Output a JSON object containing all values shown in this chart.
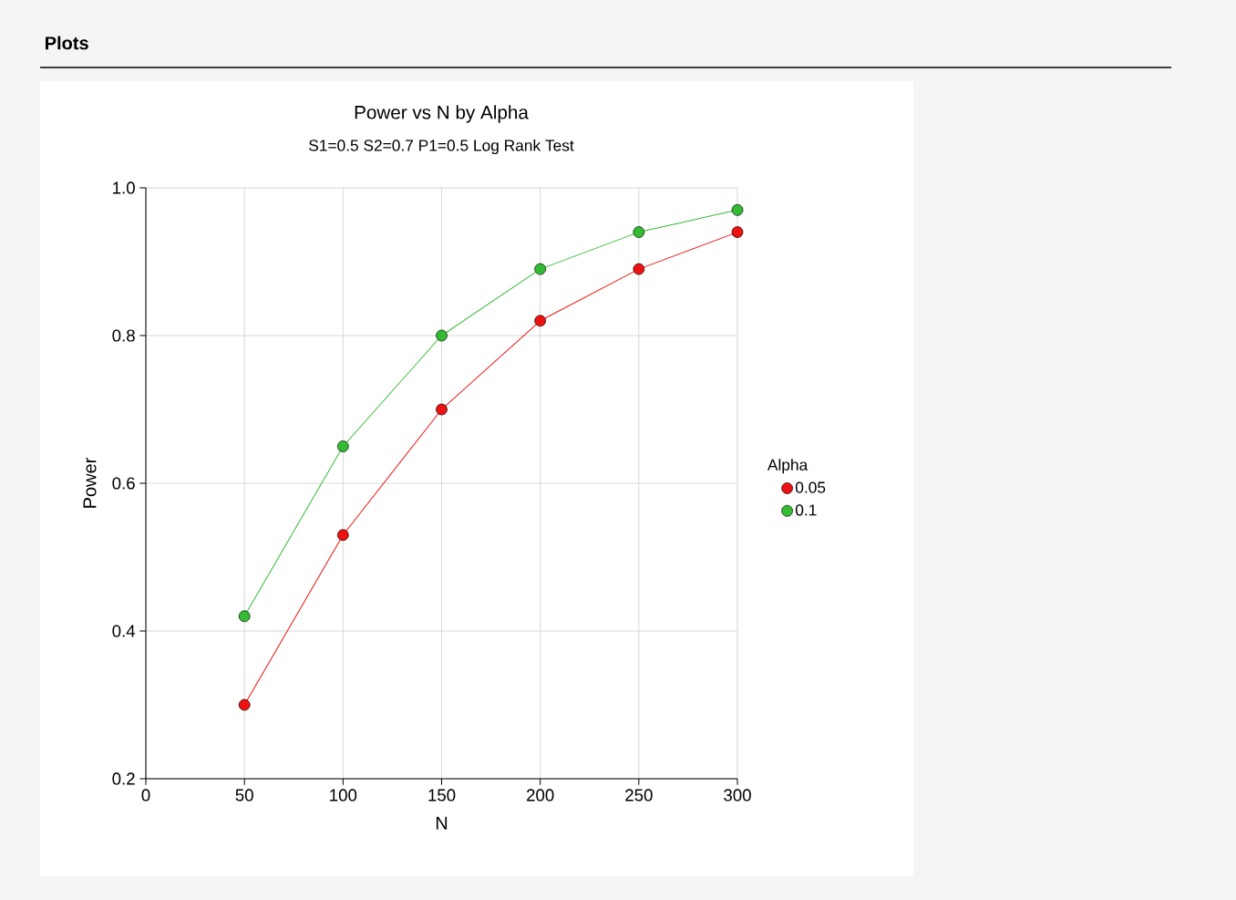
{
  "chart_data": {
    "type": "line",
    "title": "Power vs N by Alpha",
    "subtitle": "S1=0.5 S2=0.7 P1=0.5 Log Rank Test",
    "xlabel": "N",
    "ylabel": "Power",
    "legend_title": "Alpha",
    "annotations": [
      "Plots"
    ],
    "x": [
      50,
      100,
      150,
      200,
      250,
      300
    ],
    "series": [
      {
        "name": "0.05",
        "color": "#ee1111",
        "values": [
          0.3,
          0.53,
          0.7,
          0.82,
          0.89,
          0.94
        ]
      },
      {
        "name": "0.1",
        "color": "#33bb33",
        "values": [
          0.42,
          0.65,
          0.8,
          0.89,
          0.94,
          0.97
        ]
      }
    ],
    "xlim": [
      0,
      300
    ],
    "ylim": [
      0.2,
      1.0
    ],
    "xticks": [
      0,
      50,
      100,
      150,
      200,
      250,
      300
    ],
    "yticks": [
      0.2,
      0.4,
      0.6,
      0.8,
      {
        "value": 1.0,
        "label": "1.0"
      }
    ],
    "grid": true,
    "legend": "right",
    "marker": "circle",
    "line_style": "solid"
  }
}
